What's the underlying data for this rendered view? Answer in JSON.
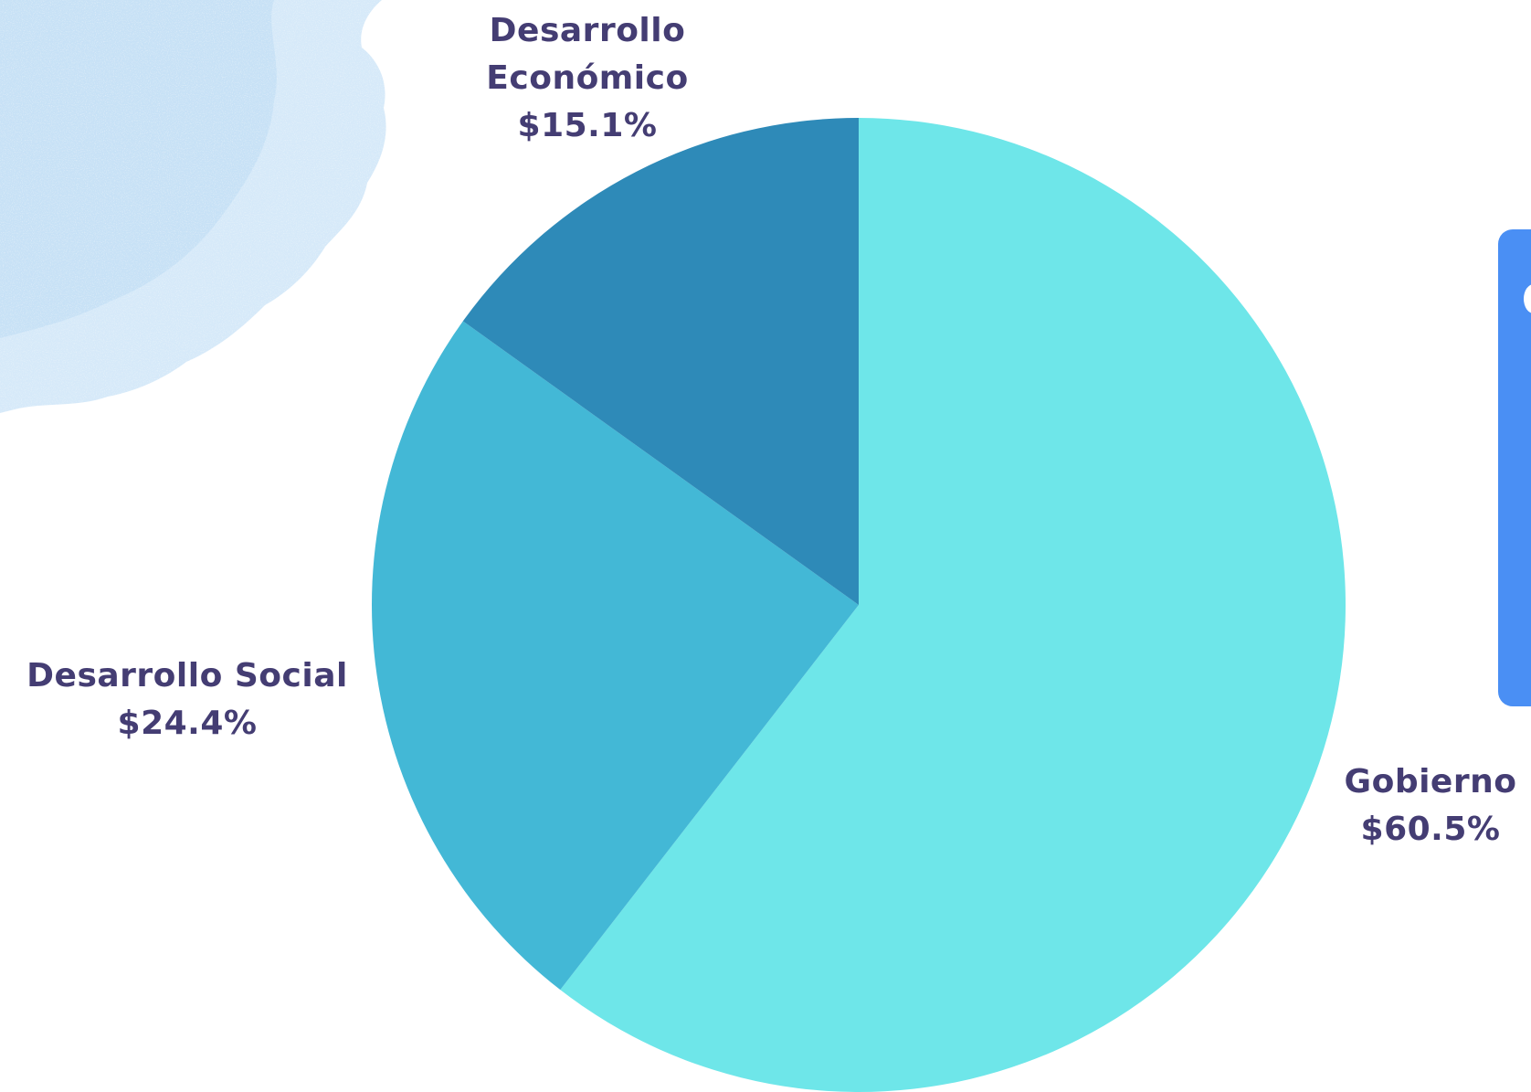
{
  "colors": {
    "background": "#ffffff",
    "label_text": "#443d73",
    "panel": "#4a8ff4",
    "watercolor": "#cfe6f8"
  },
  "chart_data": {
    "type": "pie",
    "slices": [
      {
        "label_lines": [
          "Gobierno",
          "$60.5%"
        ],
        "value": 60.5,
        "color": "#6ee6e9"
      },
      {
        "label_lines": [
          "Desarrollo Social",
          "$24.4%"
        ],
        "value": 24.4,
        "color": "#43b8d6"
      },
      {
        "label_lines": [
          "Desarrollo",
          "Económico",
          "$15.1%"
        ],
        "value": 15.1,
        "color": "#2e8ab8"
      }
    ],
    "start": "12 o'clock",
    "direction": "clockwise",
    "legend": "none"
  }
}
